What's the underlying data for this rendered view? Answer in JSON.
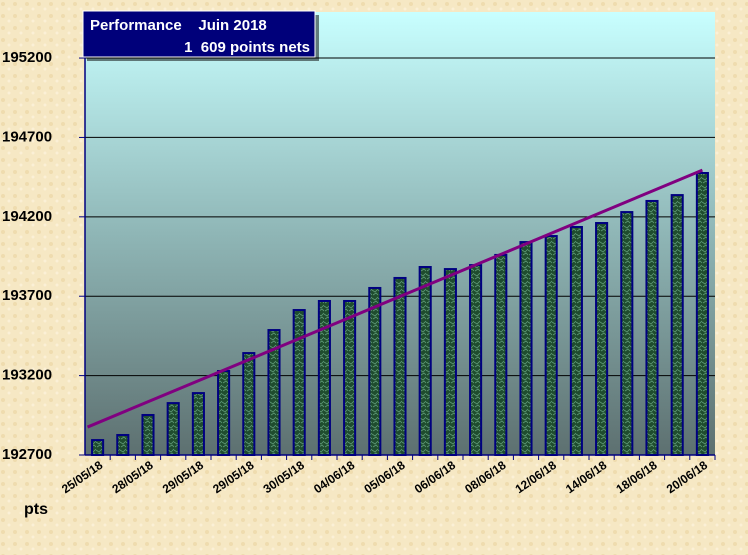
{
  "chart_data": {
    "type": "bar",
    "title": "Performance    Juin 2018",
    "subtitle": "1  609 points nets",
    "y_label": "pts",
    "categories": [
      "25/05/18",
      null,
      "28/05/18",
      null,
      "29/05/18",
      null,
      "29/05/18",
      null,
      "30/05/18",
      null,
      "04/06/18",
      null,
      "05/06/18",
      null,
      "06/06/18",
      null,
      "08/06/18",
      null,
      "12/06/18",
      null,
      "14/06/18",
      null,
      "18/06/18",
      null,
      "20/06/18"
    ],
    "values": [
      192794,
      192826,
      192952,
      193027,
      193090,
      193229,
      193342,
      193487,
      193613,
      193670,
      193670,
      193752,
      193815,
      193884,
      193871,
      193896,
      193960,
      194041,
      194079,
      194136,
      194161,
      194230,
      194300,
      194337,
      194476
    ],
    "color": "#1f4d2e",
    "border_color": "#000080",
    "trendline": {
      "start": 192876,
      "end": 194494,
      "color": "#800080"
    },
    "ylim": [
      192700,
      195490
    ],
    "yticks": [
      192700,
      193200,
      193700,
      194200,
      194700,
      195200
    ],
    "grid": true
  }
}
